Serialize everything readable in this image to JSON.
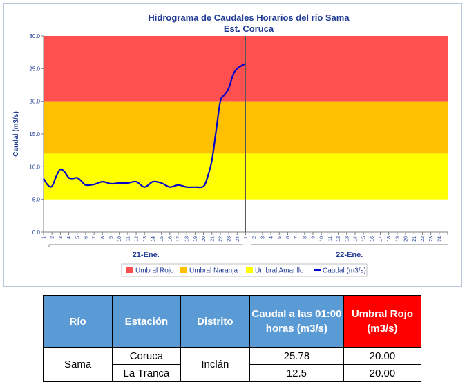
{
  "chart_data": {
    "type": "line",
    "title": "Hidrograma de Caudales Horarios del río Sama",
    "subtitle": "Est. Coruca",
    "ylabel": "Caudal (m3/s)",
    "ylim": [
      0,
      30
    ],
    "yticks": [
      "0.0",
      "5.0",
      "10.0",
      "15.0",
      "20.0",
      "25.0",
      "30.0"
    ],
    "days": [
      "21-Ene.",
      "22-Ene."
    ],
    "hours": [
      "1",
      "2",
      "3",
      "4",
      "5",
      "6",
      "7",
      "8",
      "9",
      "10",
      "11",
      "12",
      "13",
      "14",
      "15",
      "16",
      "17",
      "18",
      "19",
      "20",
      "21",
      "22",
      "23",
      "24"
    ],
    "bands": [
      {
        "name": "Umbral Rojo",
        "from": 20,
        "to": 30,
        "color": "#ff5050"
      },
      {
        "name": "Umbral Naranja",
        "from": 12,
        "to": 20,
        "color": "#ffc000"
      },
      {
        "name": "Umbral Amarillo",
        "from": 5,
        "to": 12,
        "color": "#ffff00"
      }
    ],
    "series": [
      {
        "name": "Caudal (m3/s)",
        "color": "#0000cc",
        "x": [
          1,
          1.5,
          2,
          2.5,
          3,
          3.5,
          4,
          4.5,
          5,
          5.5,
          6,
          7,
          8,
          9,
          10,
          11,
          12,
          13,
          14,
          15,
          16,
          17,
          18,
          19,
          20,
          20.5,
          21,
          21.5,
          22,
          22.5,
          23,
          23.5,
          24,
          25
        ],
        "y": [
          8.2,
          7.2,
          7.0,
          8.5,
          9.6,
          9.2,
          8.3,
          8.2,
          8.3,
          7.8,
          7.2,
          7.3,
          7.7,
          7.4,
          7.5,
          7.5,
          7.7,
          6.9,
          7.7,
          7.5,
          6.9,
          7.2,
          6.9,
          6.9,
          7.0,
          8.5,
          11.0,
          15.5,
          20.0,
          21.0,
          22.0,
          24.0,
          25.0,
          25.78
        ]
      }
    ],
    "legend_position": "bottom",
    "grid": false
  },
  "table": {
    "headers": [
      "Río",
      "Estación",
      "Distrito",
      "Caudal a las 01:00 horas (m3/s)",
      "Umbral Rojo (m3/s)"
    ],
    "river": "Sama",
    "district": "Inclán",
    "rows": [
      {
        "station": "Coruca",
        "flow": "25.78",
        "threshold": "20.00"
      },
      {
        "station": "La Tranca",
        "flow": "12.5",
        "threshold": "20.00"
      }
    ]
  }
}
